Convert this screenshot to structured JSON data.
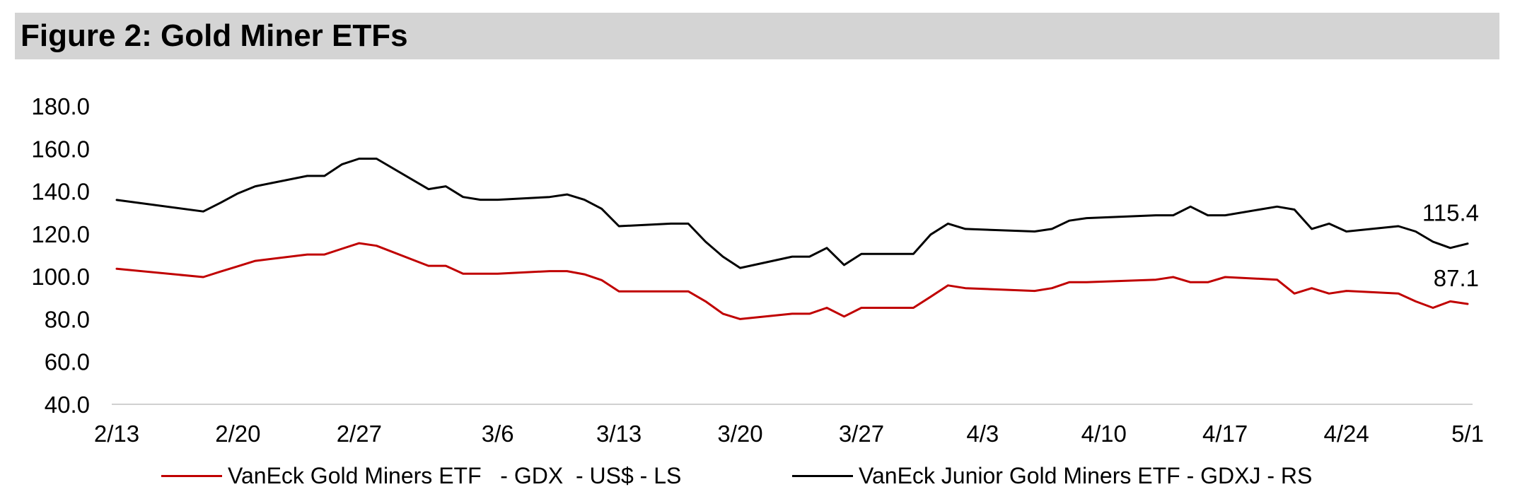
{
  "title": "Figure 2: Gold Miner ETFs",
  "chart_data": {
    "type": "line",
    "title": "Figure 2: Gold Miner ETFs",
    "xlabel": "",
    "ylabel": "",
    "ylim": [
      40,
      180
    ],
    "yticks": [
      "180.0",
      "160.0",
      "140.0",
      "120.0",
      "100.0",
      "80.0",
      "60.0",
      "40.0"
    ],
    "xticks": [
      "2/13",
      "2/20",
      "2/27",
      "3/6",
      "3/13",
      "3/20",
      "3/27",
      "4/3",
      "4/10",
      "4/17",
      "4/24",
      "5/1"
    ],
    "grid": false,
    "legend_position": "bottom",
    "x": [
      "2/13",
      "2/18",
      "2/19",
      "2/20",
      "2/21",
      "2/24",
      "2/25",
      "2/26",
      "2/27",
      "2/28",
      "3/2",
      "3/3",
      "3/4",
      "3/5",
      "3/6",
      "3/9",
      "3/10",
      "3/11",
      "3/12",
      "3/13",
      "3/16",
      "3/17",
      "3/18",
      "3/19",
      "3/20",
      "3/23",
      "3/24",
      "3/25",
      "3/26",
      "3/27",
      "3/30",
      "3/31",
      "4/1",
      "4/2",
      "4/6",
      "4/7",
      "4/8",
      "4/9",
      "4/13",
      "4/14",
      "4/15",
      "4/16",
      "4/17",
      "4/20",
      "4/21",
      "4/22",
      "4/23",
      "4/24",
      "4/27",
      "4/28",
      "4/29",
      "4/30",
      "5/1"
    ],
    "series": [
      {
        "name": "VanEck Gold Miners ETF   - GDX  - US$ - LS",
        "color": "#c00000",
        "values": [
          103.6,
          99.7,
          102.3,
          104.8,
          107.3,
          110.3,
          110.3,
          113.0,
          115.6,
          114.4,
          105.0,
          105.0,
          101.3,
          101.3,
          101.3,
          102.5,
          102.5,
          101.0,
          98.3,
          93.0,
          93.0,
          93.0,
          88.3,
          82.5,
          80.0,
          82.5,
          82.5,
          85.3,
          81.2,
          85.3,
          85.3,
          90.5,
          95.8,
          94.5,
          93.2,
          94.5,
          97.3,
          97.3,
          98.5,
          99.7,
          97.3,
          97.3,
          99.7,
          98.5,
          92.0,
          94.5,
          92.0,
          93.2,
          92.0,
          88.3,
          85.3,
          88.3,
          87.1
        ]
      },
      {
        "name": "VanEck Junior Gold Miners ETF - GDXJ - RS",
        "color": "#000000",
        "values": [
          135.9,
          130.5,
          134.6,
          139.0,
          142.3,
          147.2,
          147.2,
          152.6,
          155.3,
          155.3,
          141.0,
          142.3,
          137.3,
          136.0,
          136.0,
          137.3,
          138.5,
          136.0,
          131.8,
          123.6,
          124.8,
          124.8,
          116.3,
          109.3,
          104.0,
          109.3,
          109.3,
          113.4,
          105.4,
          110.6,
          110.6,
          119.7,
          124.8,
          122.3,
          121.1,
          122.3,
          126.2,
          127.4,
          128.7,
          128.7,
          132.8,
          128.7,
          128.7,
          132.8,
          131.4,
          122.3,
          124.8,
          121.1,
          123.6,
          121.1,
          116.3,
          113.4,
          115.4
        ]
      }
    ],
    "end_labels": [
      "115.4",
      "87.1"
    ]
  },
  "legend": [
    {
      "label": "VanEck Gold Miners ETF   - GDX  - US$ - LS",
      "color": "#c00000"
    },
    {
      "label": "VanEck Junior Gold Miners ETF - GDXJ - RS",
      "color": "#000000"
    }
  ]
}
